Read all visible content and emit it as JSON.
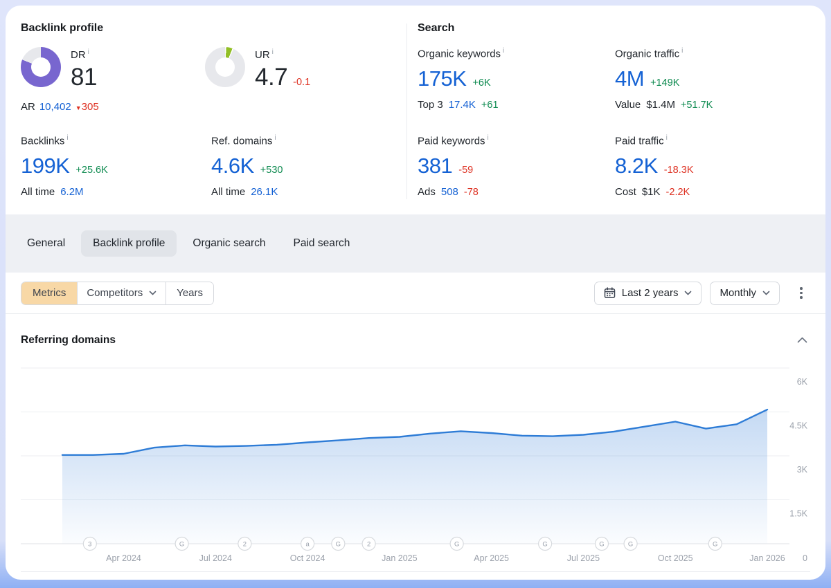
{
  "header": {
    "backlink_profile_title": "Backlink profile",
    "search_title": "Search"
  },
  "icons": {
    "info": "i",
    "down_triangle": "▼"
  },
  "dr": {
    "label": "DR",
    "value": "81",
    "percent": 81,
    "color": "#7866cf",
    "ar_label": "AR",
    "ar_value": "10,402",
    "ar_delta": "305"
  },
  "ur": {
    "label": "UR",
    "value": "4.7",
    "delta": "-0.1",
    "percent": 5,
    "color": "#92bf26"
  },
  "stats": {
    "backlinks": {
      "label": "Backlinks",
      "value": "199K",
      "delta": "+25.6K",
      "sub_label": "All time",
      "sub_value": "6.2M"
    },
    "ref_domains": {
      "label": "Ref. domains",
      "value": "4.6K",
      "delta": "+530",
      "sub_label": "All time",
      "sub_value": "26.1K"
    },
    "organic_keywords": {
      "label": "Organic keywords",
      "value": "175K",
      "delta": "+6K",
      "sub_label": "Top 3",
      "sub_value": "17.4K",
      "sub_delta": "+61"
    },
    "organic_traffic": {
      "label": "Organic traffic",
      "value": "4M",
      "delta": "+149K",
      "sub_label": "Value",
      "sub_value": "$1.4M",
      "sub_delta": "+51.7K"
    },
    "paid_keywords": {
      "label": "Paid keywords",
      "value": "381",
      "delta": "-59",
      "sub_label": "Ads",
      "sub_value": "508",
      "sub_delta": "-78"
    },
    "paid_traffic": {
      "label": "Paid traffic",
      "value": "8.2K",
      "delta": "-18.3K",
      "sub_label": "Cost",
      "sub_value": "$1K",
      "sub_delta": "-2.2K"
    }
  },
  "tabs": {
    "general": "General",
    "backlink_profile": "Backlink profile",
    "organic_search": "Organic search",
    "paid_search": "Paid search",
    "active": "Backlink profile"
  },
  "toolbar": {
    "metrics": "Metrics",
    "competitors": "Competitors",
    "years": "Years",
    "date_range": "Last 2 years",
    "granularity": "Monthly"
  },
  "panel": {
    "title": "Referring domains"
  },
  "chart_data": {
    "type": "area",
    "title": "Referring domains",
    "categories": [
      "Feb 2024",
      "Mar 2024",
      "Apr 2024",
      "May 2024",
      "Jun 2024",
      "Jul 2024",
      "Aug 2024",
      "Sep 2024",
      "Oct 2024",
      "Nov 2024",
      "Dec 2024",
      "Jan 2025",
      "Feb 2025",
      "Mar 2025",
      "Apr 2025",
      "May 2025",
      "Jun 2025",
      "Jul 2025",
      "Aug 2025",
      "Sep 2025",
      "Oct 2025",
      "Nov 2025",
      "Dec 2025",
      "Jan 2026"
    ],
    "values": [
      3030,
      3030,
      3070,
      3280,
      3360,
      3320,
      3340,
      3380,
      3460,
      3530,
      3610,
      3650,
      3760,
      3840,
      3780,
      3690,
      3670,
      3720,
      3830,
      4000,
      4170,
      3930,
      4080,
      4580
    ],
    "ylim": [
      0,
      6000
    ],
    "yticks": [
      {
        "label": "6K",
        "value": 6000
      },
      {
        "label": "4.5K",
        "value": 4500
      },
      {
        "label": "3K",
        "value": 3000
      },
      {
        "label": "1.5K",
        "value": 1500
      },
      {
        "label": "0",
        "value": 0
      }
    ],
    "xticks": [
      {
        "label": "Apr 2024",
        "index": 2
      },
      {
        "label": "Jul 2024",
        "index": 5
      },
      {
        "label": "Oct 2024",
        "index": 8
      },
      {
        "label": "Jan 2025",
        "index": 11
      },
      {
        "label": "Apr 2025",
        "index": 14
      },
      {
        "label": "Jul 2025",
        "index": 17
      },
      {
        "label": "Oct 2025",
        "index": 20
      },
      {
        "label": "Jan 2026",
        "index": 23
      }
    ],
    "events": [
      {
        "label": "3",
        "pos": 0.9
      },
      {
        "label": "G",
        "pos": 3.9
      },
      {
        "label": "2",
        "pos": 5.95
      },
      {
        "label": "a",
        "pos": 8.0
      },
      {
        "label": "G",
        "pos": 9.0
      },
      {
        "label": "2",
        "pos": 10.0
      },
      {
        "label": "G",
        "pos": 12.87
      },
      {
        "label": "G",
        "pos": 15.75
      },
      {
        "label": "G",
        "pos": 17.6
      },
      {
        "label": "G",
        "pos": 18.54
      },
      {
        "label": "G",
        "pos": 21.3
      }
    ],
    "line_color": "#2e7cd6",
    "fill_color": "#3b82d9",
    "grid": true,
    "legend": "none"
  }
}
